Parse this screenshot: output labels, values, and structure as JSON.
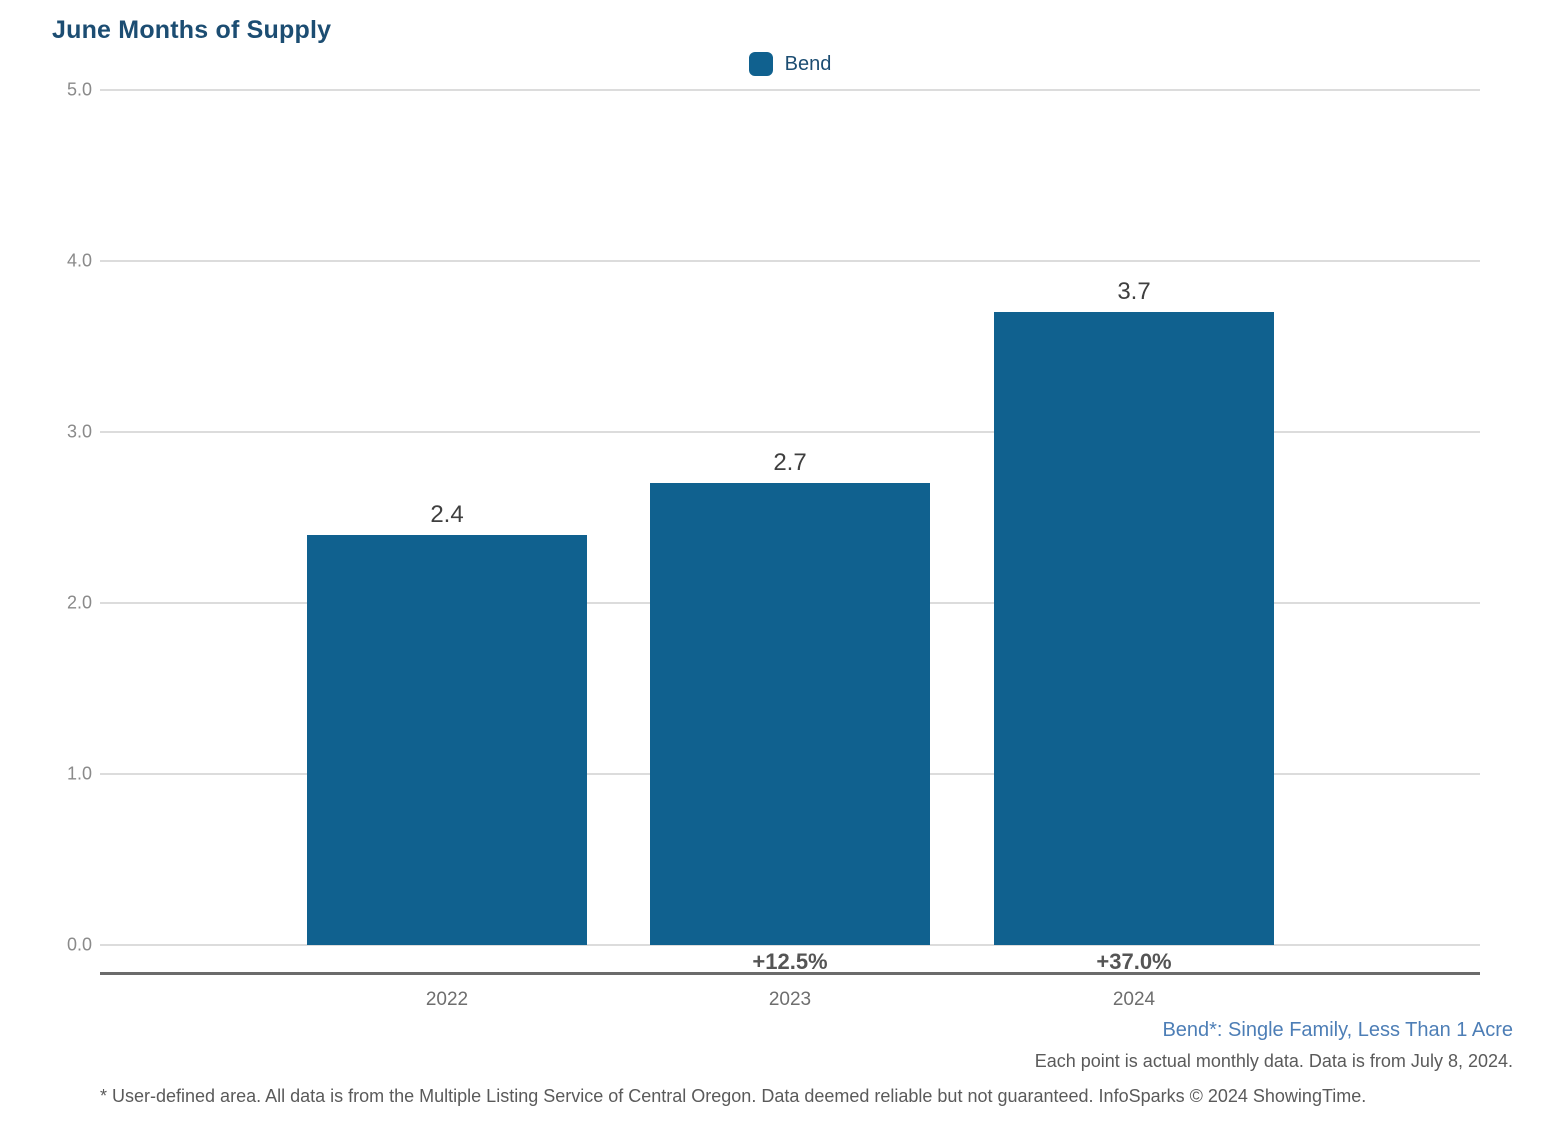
{
  "title": "June Months of Supply",
  "legend": {
    "label": "Bend",
    "swatch_color": "#10618f"
  },
  "chart_data": {
    "type": "bar",
    "title": "June Months of Supply",
    "categories": [
      "2022",
      "2023",
      "2024"
    ],
    "values": [
      2.4,
      2.7,
      3.7
    ],
    "value_labels": [
      "2.4",
      "2.7",
      "3.7"
    ],
    "pct_change_labels": [
      "",
      "+12.5%",
      "+37.0%"
    ],
    "series_name": "Bend",
    "xlabel": "",
    "ylabel": "",
    "ylim": [
      0.0,
      5.0
    ],
    "yticks": [
      5.0,
      4.0,
      3.0,
      2.0,
      1.0,
      0.0
    ],
    "ytick_labels": [
      "5.0",
      "4.0",
      "3.0",
      "2.0",
      "1.0",
      "0.0"
    ],
    "grid": true,
    "bar_color": "#10618f",
    "legend_position": "top-center"
  },
  "footnotes": {
    "series_note": "Bend*: Single Family, Less Than 1 Acre",
    "data_note": "Each point is actual monthly data. Data is from July 8, 2024.",
    "disclaimer": "* User-defined area. All data is from the Multiple Listing Service of Central Oregon. Data deemed reliable but not guaranteed. InfoSparks © 2024 ShowingTime."
  },
  "colors": {
    "title_text": "#1c4d72",
    "bar": "#10618f",
    "gridline": "#dcdcdc",
    "axis_line": "#6b6b6b",
    "ytick_text": "#8a8a8a",
    "value_label_text": "#3f3f3f",
    "pct_label_text": "#555555",
    "series_note_text": "#4d7eb6",
    "footnote_text": "#5a5a5a"
  }
}
